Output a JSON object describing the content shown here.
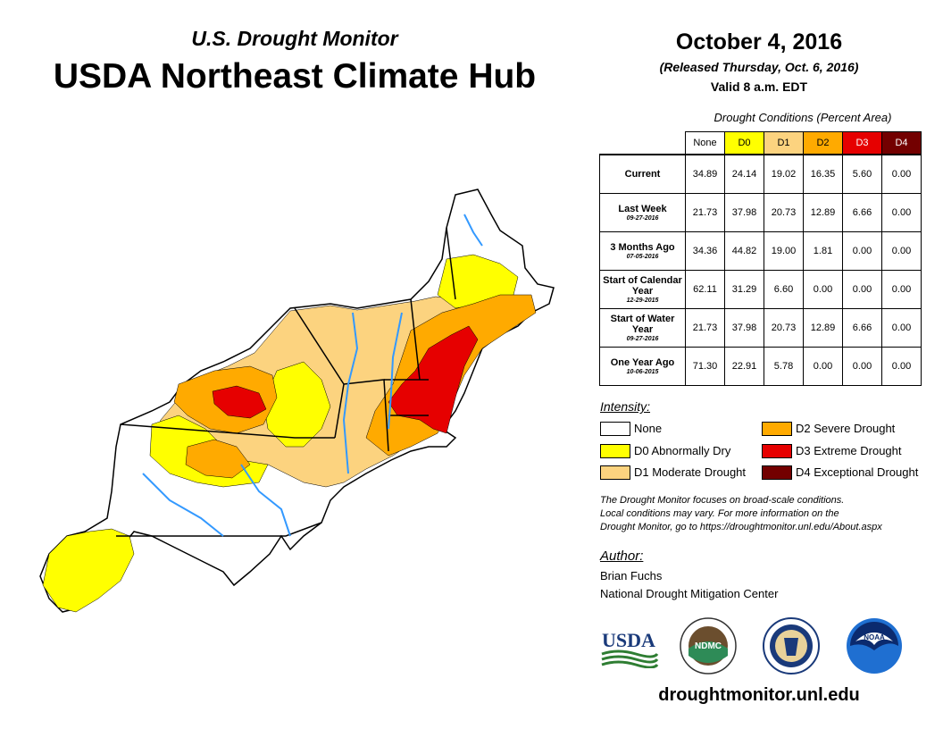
{
  "header": {
    "subtitle": "U.S. Drought Monitor",
    "title": "USDA Northeast Climate Hub",
    "date": "October 4, 2016",
    "released": "(Released Thursday, Oct. 6, 2016)",
    "valid": "Valid 8 a.m. EDT"
  },
  "table": {
    "caption": "Drought Conditions (Percent Area)",
    "columns": [
      "None",
      "D0",
      "D1",
      "D2",
      "D3",
      "D4"
    ],
    "rows": [
      {
        "label": "Current",
        "date": "",
        "values": [
          "34.89",
          "24.14",
          "19.02",
          "16.35",
          "5.60",
          "0.00"
        ]
      },
      {
        "label": "Last Week",
        "date": "09-27-2016",
        "values": [
          "21.73",
          "37.98",
          "20.73",
          "12.89",
          "6.66",
          "0.00"
        ]
      },
      {
        "label": "3 Months Ago",
        "date": "07-05-2016",
        "values": [
          "34.36",
          "44.82",
          "19.00",
          "1.81",
          "0.00",
          "0.00"
        ]
      },
      {
        "label": "Start of Calendar Year",
        "date": "12-29-2015",
        "values": [
          "62.11",
          "31.29",
          "6.60",
          "0.00",
          "0.00",
          "0.00"
        ]
      },
      {
        "label": "Start of Water Year",
        "date": "09-27-2016",
        "values": [
          "21.73",
          "37.98",
          "20.73",
          "12.89",
          "6.66",
          "0.00"
        ]
      },
      {
        "label": "One Year Ago",
        "date": "10-06-2015",
        "values": [
          "71.30",
          "22.91",
          "5.78",
          "0.00",
          "0.00",
          "0.00"
        ]
      }
    ]
  },
  "legend": {
    "heading": "Intensity:",
    "items": [
      {
        "label": "None",
        "color": "#ffffff"
      },
      {
        "label": "D0 Abnormally Dry",
        "color": "#ffff00"
      },
      {
        "label": "D1 Moderate Drought",
        "color": "#fcd37f"
      },
      {
        "label": "D2 Severe Drought",
        "color": "#ffaa00"
      },
      {
        "label": "D3 Extreme Drought",
        "color": "#e60000"
      },
      {
        "label": "D4 Exceptional Drought",
        "color": "#730000"
      }
    ]
  },
  "note": {
    "line1": "The Drought Monitor focuses on broad-scale conditions.",
    "line2": "Local conditions may vary. For more information on the",
    "line3": "Drought Monitor, go to https://droughtmonitor.unl.edu/About.aspx"
  },
  "author": {
    "heading": "Author:",
    "name": "Brian Fuchs",
    "org": "National Drought Mitigation Center"
  },
  "logos": {
    "usda": "USDA",
    "ndmc": "NDMC",
    "noaa": "NOAA"
  },
  "website": "droughtmonitor.unl.edu",
  "colors": {
    "water": "#3399ff",
    "header_d0": "#ffff00",
    "header_d1": "#fcd37f",
    "header_d2": "#ffaa00",
    "header_d3": "#e60000",
    "header_d4": "#730000"
  }
}
